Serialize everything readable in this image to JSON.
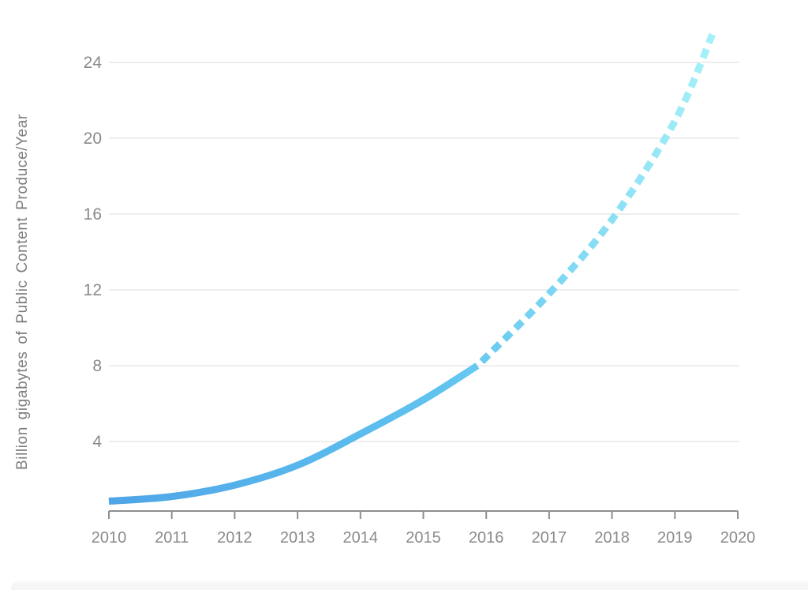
{
  "chart_data": {
    "type": "line",
    "title": "",
    "xlabel": "",
    "ylabel": "Billion gigabytes of Public Content Produce/Year",
    "x_ticks": [
      "2010",
      "2011",
      "2012",
      "2013",
      "2014",
      "2015",
      "2016",
      "2017",
      "2018",
      "2019",
      "2020"
    ],
    "y_ticks": [
      4,
      8,
      12,
      16,
      20,
      24
    ],
    "xlim": [
      2010,
      2020
    ],
    "ylim": [
      0,
      27
    ],
    "grid": "horizontal-only",
    "legend": "none",
    "series": [
      {
        "name": "historical",
        "style": "solid",
        "points": [
          [
            2010,
            0.85
          ],
          [
            2011,
            1.1
          ],
          [
            2012,
            1.7
          ],
          [
            2013,
            2.75
          ],
          [
            2014,
            4.4
          ],
          [
            2015,
            6.2
          ],
          [
            2015.86,
            8.0
          ]
        ]
      },
      {
        "name": "projected",
        "style": "dashed",
        "points": [
          [
            2015.86,
            8.0
          ],
          [
            2016,
            8.45
          ],
          [
            2017,
            11.8
          ],
          [
            2018,
            15.7
          ],
          [
            2019,
            20.9
          ],
          [
            2019.6,
            25.5
          ]
        ]
      }
    ],
    "colors": {
      "line_gradient_start": "#4FA5E7",
      "line_gradient_mid": "#5FC3EF",
      "line_gradient_end": "#A6F1F8",
      "gridline": "#E9E9E9",
      "axis": "#8F8F8F",
      "tick_label": "#8A8A8A",
      "axis_title": "#7D7D7D"
    }
  }
}
